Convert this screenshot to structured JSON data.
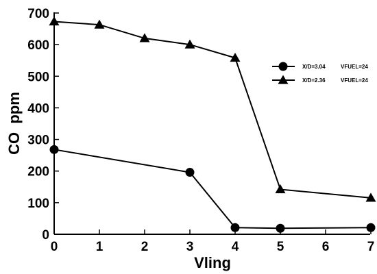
{
  "chart_data": {
    "type": "line",
    "xlabel": "Vling",
    "ylabel": "CO  ppm",
    "xlim": [
      0,
      7
    ],
    "ylim": [
      0,
      700
    ],
    "xticks": [
      0,
      1,
      2,
      3,
      4,
      5,
      6,
      7
    ],
    "yticks": [
      0,
      100,
      200,
      300,
      400,
      500,
      600,
      700
    ],
    "grid": false,
    "legend_position": "top-right",
    "series": [
      {
        "name": "X/D=3.04",
        "extra": "VFUEL=24",
        "marker": "circle",
        "x": [
          0,
          3,
          4,
          5,
          7
        ],
        "y": [
          268,
          196,
          21,
          19,
          21
        ]
      },
      {
        "name": "X/D=2.36",
        "extra": "VFUEL=24",
        "marker": "triangle",
        "x": [
          0,
          1,
          3,
          2,
          4,
          5,
          7
        ],
        "y": [
          673,
          663,
          600,
          620,
          558,
          142,
          115
        ]
      }
    ]
  }
}
